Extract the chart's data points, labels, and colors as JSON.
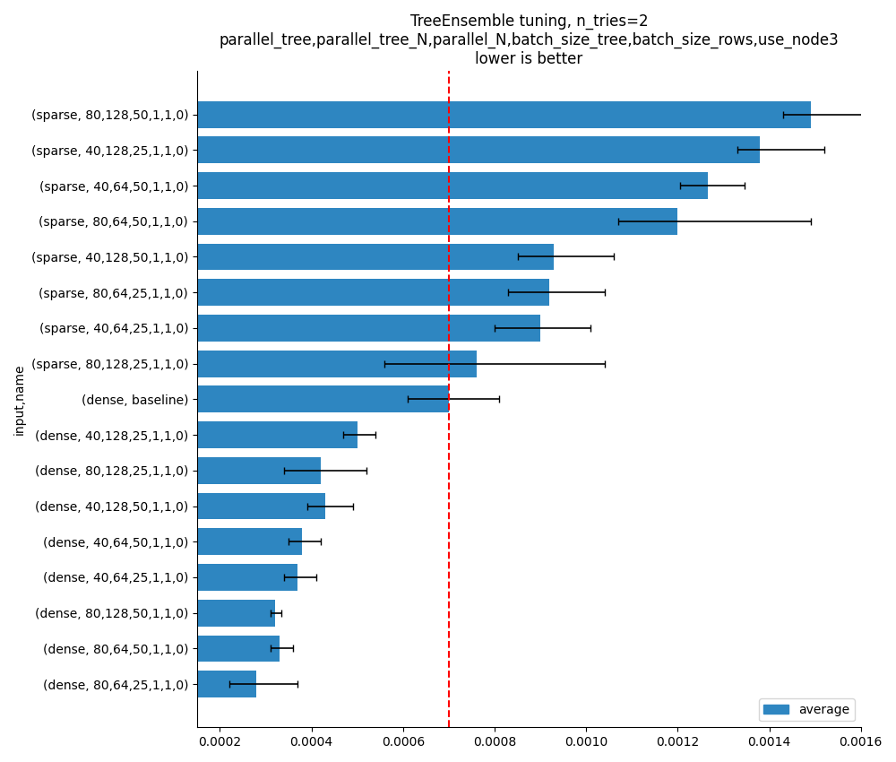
{
  "title_line1": "TreeEnsemble tuning, n_tries=2",
  "title_line2": "parallel_tree,parallel_tree_N,parallel_N,batch_size_tree,batch_size_rows,use_node3",
  "title_line3": "lower is better",
  "xlabel": "",
  "ylabel": "input,name",
  "categories": [
    "(sparse, 80,128,50,1,1,0)",
    "(sparse, 40,128,25,1,1,0)",
    "(sparse, 40,64,50,1,1,0)",
    "(sparse, 80,64,50,1,1,0)",
    "(sparse, 40,128,50,1,1,0)",
    "(sparse, 80,64,25,1,1,0)",
    "(sparse, 40,64,25,1,1,0)",
    "(sparse, 80,128,25,1,1,0)",
    "(dense, baseline)",
    "(dense, 40,128,25,1,1,0)",
    "(dense, 80,128,25,1,1,0)",
    "(dense, 40,128,50,1,1,0)",
    "(dense, 40,64,50,1,1,0)",
    "(dense, 40,64,25,1,1,0)",
    "(dense, 80,128,50,1,1,0)",
    "(dense, 80,64,50,1,1,0)",
    "(dense, 80,64,25,1,1,0)"
  ],
  "values": [
    0.00149,
    0.00138,
    0.001265,
    0.0012,
    0.00093,
    0.00092,
    0.0009,
    0.00076,
    0.0007,
    0.0005,
    0.00042,
    0.00043,
    0.00038,
    0.00037,
    0.00032,
    0.00033,
    0.00028
  ],
  "errors_low": [
    6e-05,
    5e-05,
    6e-05,
    0.00013,
    8e-05,
    9e-05,
    0.0001,
    0.0002,
    9e-05,
    3e-05,
    8e-05,
    4e-05,
    3e-05,
    3e-05,
    1e-05,
    2e-05,
    6e-05
  ],
  "errors_high": [
    0.00012,
    0.00014,
    8e-05,
    0.00029,
    0.00013,
    0.00012,
    0.00011,
    0.00028,
    0.00011,
    4e-05,
    0.0001,
    6e-05,
    4e-05,
    4e-05,
    1.5e-05,
    3e-05,
    9e-05
  ],
  "bar_color": "#2e86c1",
  "dashed_line_x": 0.0007,
  "xlim_left": 0.00015,
  "xlim_right": 0.0016,
  "xtick_start": 0.0002,
  "xtick_step": 0.0002,
  "xtick_end": 0.00165,
  "legend_label": "average",
  "background_color": "#ffffff",
  "title_fontsize": 12,
  "label_fontsize": 10,
  "tick_fontsize": 10,
  "bar_height": 0.75
}
